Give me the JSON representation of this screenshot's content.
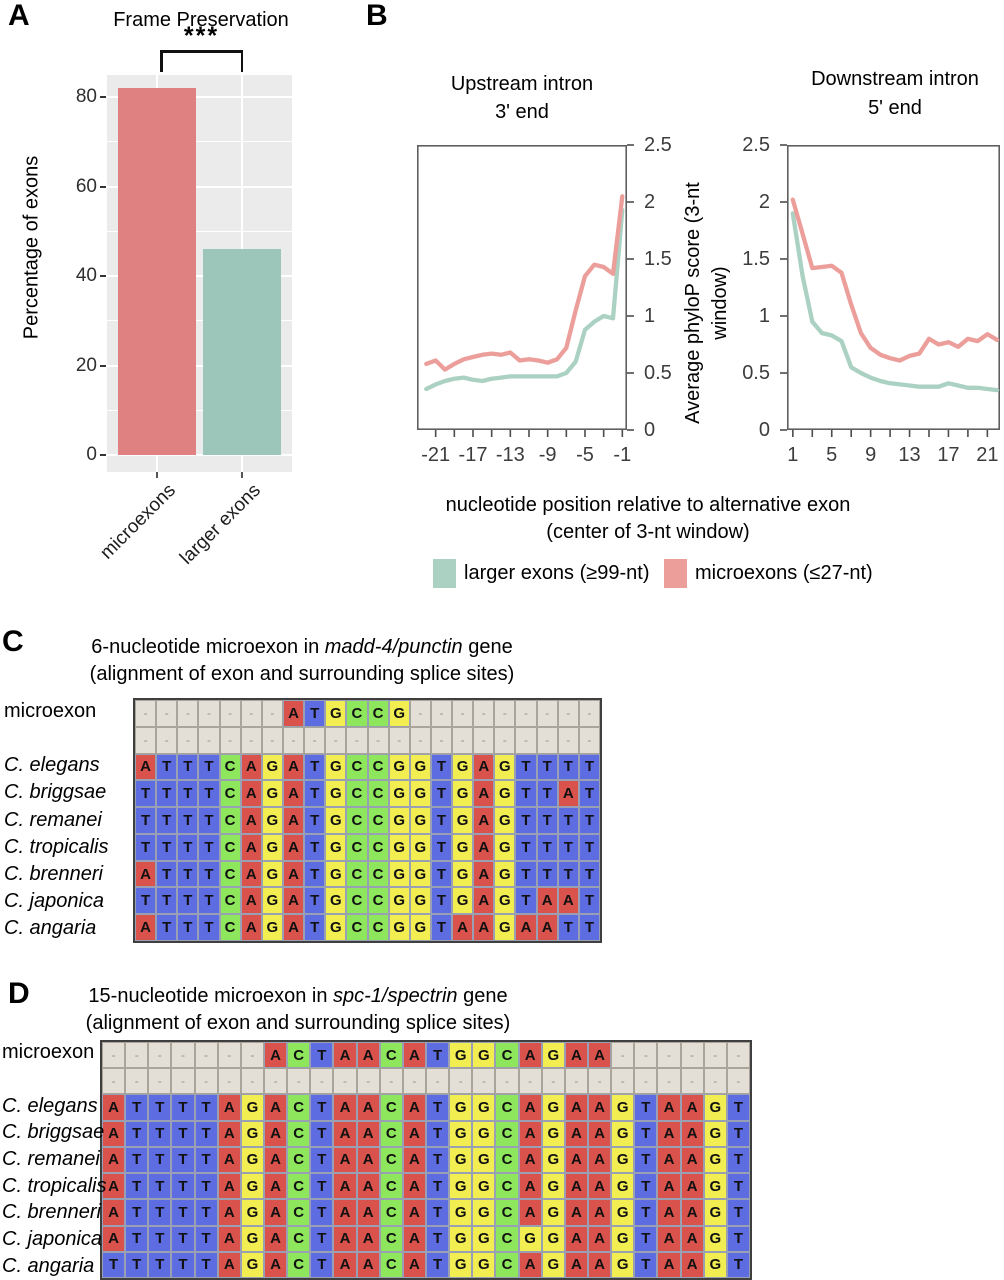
{
  "panels": {
    "a_label": "A",
    "b_label": "B",
    "c_label": "C",
    "d_label": "D"
  },
  "chart_data": [
    {
      "type": "bar",
      "title": "Frame Preservation",
      "significance": "***",
      "ylabel": "Percentage of exons",
      "categories": [
        "microexons",
        "larger exons"
      ],
      "values": [
        82,
        46
      ],
      "colors": [
        "#e08181",
        "#9cc6b9"
      ],
      "ylim": [
        0,
        85
      ],
      "yticks": [
        0,
        20,
        40,
        60,
        80
      ],
      "yticks_minor": [
        10,
        30,
        50,
        70
      ],
      "background": "#ebebeb",
      "gridline_color": "#ffffff"
    },
    {
      "type": "line",
      "title": "Upstream intron",
      "subtitle": "3' end",
      "xlabel": "nucleotide position relative to alternative exon (center of 3-nt window)",
      "ylabel": "Average phyloP score (3-nt window)",
      "xlim": [
        -23,
        -0.5
      ],
      "ylim": [
        0,
        2.5
      ],
      "xticks": [
        -21,
        -17,
        -13,
        -9,
        -5,
        -1
      ],
      "xticks_minor": [
        -21,
        -19,
        -17,
        -15,
        -13,
        -11,
        -9,
        -7,
        -5,
        -3,
        -1
      ],
      "yticks": [
        0,
        0.5,
        1,
        1.5,
        2,
        2.5
      ],
      "ytick_side": "right",
      "x": [
        -22,
        -21,
        -20,
        -19,
        -18,
        -17,
        -16,
        -15,
        -14,
        -13,
        -12,
        -11,
        -10,
        -9,
        -8,
        -7,
        -6,
        -5,
        -4,
        -3,
        -2,
        -1
      ],
      "series": [
        {
          "name": "larger exons (≥99-nt)",
          "color": "#abd1c3",
          "values": [
            0.36,
            0.4,
            0.43,
            0.45,
            0.46,
            0.44,
            0.43,
            0.45,
            0.46,
            0.47,
            0.47,
            0.47,
            0.47,
            0.47,
            0.47,
            0.5,
            0.6,
            0.88,
            0.95,
            1.0,
            0.98,
            1.93
          ]
        },
        {
          "name": "microexons (≤27-nt)",
          "color": "#eb9e9a",
          "values": [
            0.58,
            0.61,
            0.53,
            0.58,
            0.62,
            0.64,
            0.66,
            0.67,
            0.66,
            0.68,
            0.61,
            0.62,
            0.61,
            0.59,
            0.62,
            0.72,
            1.05,
            1.35,
            1.45,
            1.43,
            1.37,
            2.05
          ]
        }
      ]
    },
    {
      "type": "line",
      "title": "Downstream intron",
      "subtitle": "5' end",
      "xlabel": "nucleotide position relative to alternative exon (center of 3-nt window)",
      "ylabel": "Average phyloP score (3-nt window)",
      "xlim": [
        0.4,
        22.3
      ],
      "ylim": [
        0,
        2.5
      ],
      "xticks": [
        1,
        5,
        9,
        13,
        17,
        21
      ],
      "xticks_minor": [
        1,
        3,
        5,
        7,
        9,
        11,
        13,
        15,
        17,
        19,
        21
      ],
      "yticks": [
        0,
        0.5,
        1,
        1.5,
        2,
        2.5
      ],
      "ytick_side": "left",
      "x": [
        1,
        2,
        3,
        4,
        5,
        6,
        7,
        8,
        9,
        10,
        11,
        12,
        13,
        14,
        15,
        16,
        17,
        18,
        19,
        20,
        21,
        22
      ],
      "series": [
        {
          "name": "larger exons (≥99-nt)",
          "color": "#abd1c3",
          "values": [
            1.9,
            1.35,
            0.95,
            0.85,
            0.83,
            0.78,
            0.55,
            0.5,
            0.46,
            0.43,
            0.41,
            0.4,
            0.39,
            0.38,
            0.38,
            0.38,
            0.41,
            0.39,
            0.37,
            0.37,
            0.36,
            0.35
          ]
        },
        {
          "name": "microexons (≤27-nt)",
          "color": "#eb9e9a",
          "values": [
            2.02,
            1.72,
            1.42,
            1.43,
            1.44,
            1.38,
            1.1,
            0.85,
            0.72,
            0.66,
            0.63,
            0.61,
            0.65,
            0.67,
            0.8,
            0.75,
            0.77,
            0.73,
            0.8,
            0.78,
            0.84,
            0.79
          ]
        }
      ]
    }
  ],
  "panel_b": {
    "ylabel": "Average phyloP score (3-nt window)",
    "xlabel_line1": "nucleotide position relative to alternative exon",
    "xlabel_line2": "(center of 3-nt window)",
    "legend": [
      {
        "label": "larger exons (≥99-nt)",
        "color": "#abd1c3"
      },
      {
        "label": "microexons (≤27-nt)",
        "color": "#eb9e9a"
      }
    ]
  },
  "alignments": {
    "colors": {
      "A": "#d9524c",
      "C": "#8ee65c",
      "G": "#f2ee52",
      "T": "#5e6ce2",
      "-": "#e3dfd6"
    },
    "c": {
      "title_prefix": "6-nucleotide microexon in ",
      "title_gene": "madd-4/punctin",
      "title_suffix": " gene",
      "subtitle": "(alignment of exon and surrounding splice sites)",
      "rows": [
        {
          "name": "microexon",
          "italic": false,
          "seq": "-------ATGCCG---------"
        },
        {
          "name": "",
          "italic": false,
          "seq": "----------------------"
        },
        {
          "name": "C. elegans",
          "italic": true,
          "seq": "ATTTCAGATGCCGGTGAGTTTT"
        },
        {
          "name": "C. briggsae",
          "italic": true,
          "seq": "TTTTCAGATGCCGGTGAGTTAT"
        },
        {
          "name": "C. remanei",
          "italic": true,
          "seq": "TTTTCAGATGCCGGTGAGTTTT"
        },
        {
          "name": "C. tropicalis",
          "italic": true,
          "seq": "TTTTCAGATGCCGGTGAGTTTT"
        },
        {
          "name": "C. brenneri",
          "italic": true,
          "seq": "ATTTCAGATGCCGGTGAGTTTT"
        },
        {
          "name": "C. japonica",
          "italic": true,
          "seq": "TTTTCAGATGCCGGTGAGTAAT"
        },
        {
          "name": "C. angaria",
          "italic": true,
          "seq": "ATTTCAGATGCCGGTAAGAATT"
        }
      ]
    },
    "d": {
      "title_prefix": "15-nucleotide microexon in ",
      "title_gene": "spc-1/spectrin",
      "title_suffix": " gene",
      "subtitle": "(alignment of exon and surrounding splice sites)",
      "rows": [
        {
          "name": "microexon",
          "italic": false,
          "seq": "-------ACTAACATGGCAGAA------"
        },
        {
          "name": "",
          "italic": false,
          "seq": "----------------------------"
        },
        {
          "name": "C. elegans",
          "italic": true,
          "seq": "ATTTTAGACTAACATGGCAGAAGTAAGT"
        },
        {
          "name": "C. briggsae",
          "italic": true,
          "seq": "ATTTTAGACTAACATGGCAGAAGTAAGT"
        },
        {
          "name": "C. remanei",
          "italic": true,
          "seq": "ATTTTAGACTAACATGGCAGAAGTAAGT"
        },
        {
          "name": "C. tropicalis",
          "italic": true,
          "seq": "ATTTTAGACTAACATGGCAGAAGTAAGT"
        },
        {
          "name": "C. brenneri",
          "italic": true,
          "seq": "ATTTTAGACTAACATGGCAGAAGTAAGT"
        },
        {
          "name": "C. japonica",
          "italic": true,
          "seq": "ATTTTAGACTAACATGGCGGAAGTAAGT"
        },
        {
          "name": "C. angaria",
          "italic": true,
          "seq": "TTTTTAGACTAACATGGCAGAAGTAAGT"
        }
      ]
    }
  }
}
